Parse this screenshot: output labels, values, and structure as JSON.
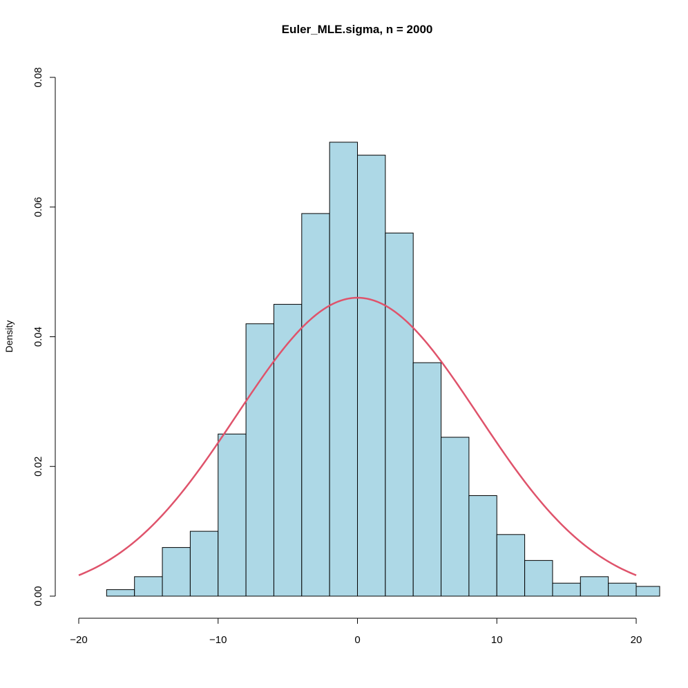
{
  "chart_data": {
    "type": "bar",
    "title": "Euler_MLE.sigma, n = 2000",
    "xlabel": "",
    "ylabel": "Density",
    "xlim": [
      -20,
      20
    ],
    "ylim": [
      0,
      0.08
    ],
    "x_ticks": [
      -20,
      -10,
      0,
      10,
      20
    ],
    "x_tick_labels": [
      "−20",
      "−10",
      "0",
      "10",
      "20"
    ],
    "y_ticks": [
      0,
      0.02,
      0.04,
      0.06,
      0.08
    ],
    "y_tick_labels": [
      "0.00",
      "0.02",
      "0.04",
      "0.06",
      "0.08"
    ],
    "bin_edges": [
      -18,
      -16,
      -14,
      -12,
      -10,
      -8,
      -6,
      -4,
      -2,
      0,
      2,
      4,
      6,
      8,
      10,
      12,
      14,
      16,
      18,
      20,
      22
    ],
    "values": [
      0.001,
      0.003,
      0.0075,
      0.01,
      0.025,
      0.042,
      0.045,
      0.059,
      0.07,
      0.068,
      0.056,
      0.036,
      0.0245,
      0.0155,
      0.0095,
      0.0055,
      0.002,
      0.003,
      0.002,
      0.0015
    ],
    "bar_fill": "#add8e6",
    "bar_stroke": "#000000",
    "curve": {
      "type": "normal_density",
      "mean": 0,
      "sd": 8.67,
      "x_range": [
        -20,
        20
      ],
      "color": "#df536b"
    },
    "grid": false,
    "legend": "none"
  }
}
